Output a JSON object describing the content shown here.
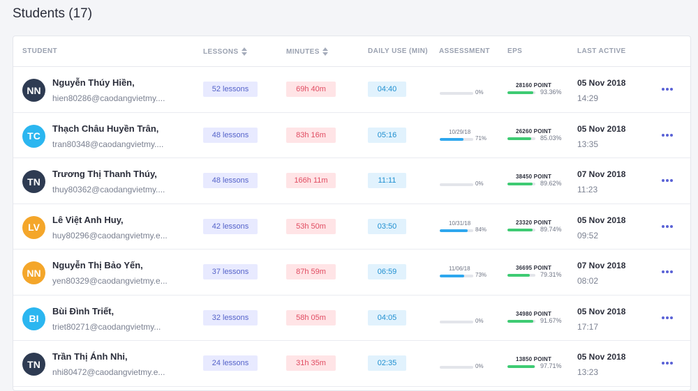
{
  "header": {
    "title": "Students (17)"
  },
  "columns": {
    "student": "STUDENT",
    "lessons": "LESSONS",
    "minutes": "MINUTES",
    "daily_use": "DAILY USE (MIN)",
    "assessment": "ASSESSMENT",
    "eps": "EPS",
    "last_active": "LAST ACTIVE"
  },
  "colors": {
    "avatar_dark": "#2e3b52",
    "avatar_cyan": "#2bb6f0",
    "avatar_orange": "#f4a62a",
    "assessment_bar": "#2ea7ee",
    "eps_bar": "#3ecb73",
    "accent": "#5a62d6"
  },
  "students": [
    {
      "initials": "NN",
      "avatar_color": "#2e3b52",
      "name": "Nguyễn Thúy Hiền,",
      "email": "hien80286@caodangvietmy....",
      "lessons": "52 lessons",
      "minutes": "69h 40m",
      "daily_use": "04:40",
      "assessment_date": "",
      "assessment_pct": "0%",
      "assessment_value": 0,
      "eps_points": "28160 POINT",
      "eps_pct": "93.36%",
      "eps_value": 93.36,
      "last_date": "05 Nov 2018",
      "last_time": "14:29"
    },
    {
      "initials": "TC",
      "avatar_color": "#2bb6f0",
      "name": "Thạch Châu Huyền Trân,",
      "email": "tran80348@caodangvietmy....",
      "lessons": "48 lessons",
      "minutes": "83h 16m",
      "daily_use": "05:16",
      "assessment_date": "10/29/18",
      "assessment_pct": "71%",
      "assessment_value": 71,
      "eps_points": "26260 POINT",
      "eps_pct": "85.03%",
      "eps_value": 85.03,
      "last_date": "05 Nov 2018",
      "last_time": "13:35"
    },
    {
      "initials": "TN",
      "avatar_color": "#2e3b52",
      "name": "Trương Thị Thanh Thúy,",
      "email": "thuy80362@caodangvietmy....",
      "lessons": "48 lessons",
      "minutes": "166h 11m",
      "daily_use": "11:11",
      "assessment_date": "",
      "assessment_pct": "0%",
      "assessment_value": 0,
      "eps_points": "38450 POINT",
      "eps_pct": "89.62%",
      "eps_value": 89.62,
      "last_date": "07 Nov 2018",
      "last_time": "11:23"
    },
    {
      "initials": "LV",
      "avatar_color": "#f4a62a",
      "name": "Lê Việt Anh Huy,",
      "email": "huy80296@caodangvietmy.e...",
      "lessons": "42 lessons",
      "minutes": "53h 50m",
      "daily_use": "03:50",
      "assessment_date": "10/31/18",
      "assessment_pct": "84%",
      "assessment_value": 84,
      "eps_points": "23320 POINT",
      "eps_pct": "89.74%",
      "eps_value": 89.74,
      "last_date": "05 Nov 2018",
      "last_time": "09:52"
    },
    {
      "initials": "NN",
      "avatar_color": "#f4a62a",
      "name": "Nguyễn Thị Bảo Yến,",
      "email": "yen80329@caodangvietmy.e...",
      "lessons": "37 lessons",
      "minutes": "87h 59m",
      "daily_use": "06:59",
      "assessment_date": "11/06/18",
      "assessment_pct": "73%",
      "assessment_value": 73,
      "eps_points": "36695 POINT",
      "eps_pct": "79.31%",
      "eps_value": 79.31,
      "last_date": "07 Nov 2018",
      "last_time": "08:02"
    },
    {
      "initials": "BI",
      "avatar_color": "#2bb6f0",
      "name": "Bùi Đình Triết,",
      "email": "triet80271@caodangvietmy...",
      "lessons": "32 lessons",
      "minutes": "58h 05m",
      "daily_use": "04:05",
      "assessment_date": "",
      "assessment_pct": "0%",
      "assessment_value": 0,
      "eps_points": "34980 POINT",
      "eps_pct": "91.67%",
      "eps_value": 91.67,
      "last_date": "05 Nov 2018",
      "last_time": "17:17"
    },
    {
      "initials": "TN",
      "avatar_color": "#2e3b52",
      "name": "Trần Thị Ánh Nhi,",
      "email": "nhi80472@caodangvietmy.e...",
      "lessons": "24 lessons",
      "minutes": "31h 35m",
      "daily_use": "02:35",
      "assessment_date": "",
      "assessment_pct": "0%",
      "assessment_value": 0,
      "eps_points": "13850 POINT",
      "eps_pct": "97.71%",
      "eps_value": 97.71,
      "last_date": "05 Nov 2018",
      "last_time": "13:23"
    }
  ]
}
